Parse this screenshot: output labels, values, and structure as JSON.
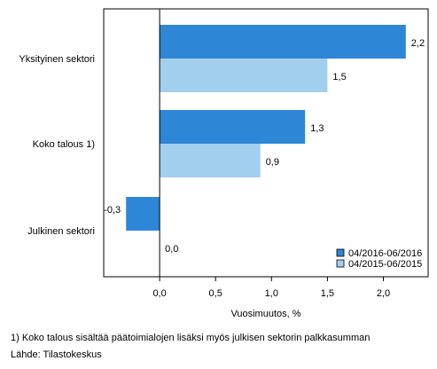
{
  "chart_data": {
    "type": "bar",
    "orientation": "horizontal",
    "categories": [
      "Yksityinen sektori",
      "Koko talous 1)",
      "Julkinen sektori"
    ],
    "series": [
      {
        "name": "04/2016-06/2016",
        "values": [
          2.2,
          1.3,
          -0.3
        ],
        "color": "#2e86d6"
      },
      {
        "name": "04/2015-06/2015",
        "values": [
          1.5,
          0.9,
          0.0
        ],
        "color": "#a3cfef"
      }
    ],
    "data_labels": [
      [
        "2,2",
        "1,3",
        "-0,3"
      ],
      [
        "1,5",
        "0,9",
        "0,0"
      ]
    ],
    "xlabel": "Vuosimuutos, %",
    "xlim": [
      -0.5,
      2.4
    ],
    "xticks": [
      0.0,
      0.5,
      1.0,
      1.5,
      2.0
    ],
    "xtick_labels": [
      "0,0",
      "0,5",
      "1,0",
      "1,5",
      "2,0"
    ],
    "grid": false,
    "legend_position": "bottom-right",
    "axis_color": "#000000"
  },
  "footnotes": {
    "note": "1) Koko talous sisältää päätoimialojen lisäksi myös julkisen sektorin palkkasumman",
    "source": "Lähde: Tilastokeskus"
  }
}
